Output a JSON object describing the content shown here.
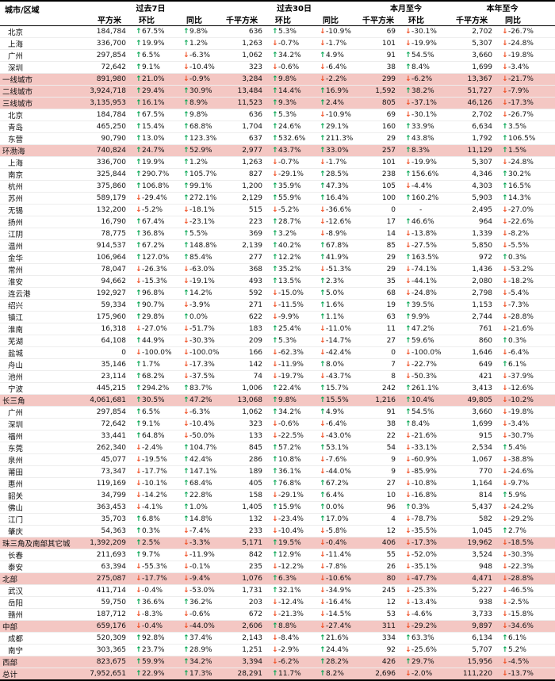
{
  "colors": {
    "up_arrow": "#00a550",
    "down_arrow": "#f04e23",
    "highlight_row_bg": "#f4c7c3",
    "table_frame": "#000000",
    "row_divider": "#ededed",
    "text": "#111111"
  },
  "icons": {
    "up_arrow": {
      "glyph": "↑",
      "color": "#00a550",
      "meaning": "increase"
    },
    "down_arrow": {
      "glyph": "↓",
      "color": "#f04e23",
      "meaning": "decrease"
    }
  },
  "chart_data": {
    "type": "table",
    "corner_header": "城市/区域",
    "column_groups": [
      {
        "label": "过去7日",
        "columns": [
          "平方米",
          "环比",
          "同比"
        ]
      },
      {
        "label": "过去30日",
        "columns": [
          "千平方米",
          "环比",
          "同比"
        ]
      },
      {
        "label": "本月至今",
        "columns": [
          "千平方米",
          "环比"
        ]
      },
      {
        "label": "本年至今",
        "columns": [
          "千平方米",
          "同比"
        ]
      }
    ],
    "column_kinds": [
      "num",
      "pct",
      "pct",
      "num",
      "pct",
      "pct",
      "num",
      "pct",
      "num",
      "pct"
    ],
    "rows": [
      [
        "北京",
        0,
        "184,784",
        "67.5%",
        "9.8%",
        "636",
        "5.3%",
        "-10.9%",
        "69",
        "-30.1%",
        "2,702",
        "-26.7%"
      ],
      [
        "上海",
        0,
        "336,700",
        "19.9%",
        "1.2%",
        "1,263",
        "-0.7%",
        "-1.7%",
        "101",
        "-19.9%",
        "5,307",
        "-24.8%"
      ],
      [
        "广州",
        0,
        "297,854",
        "6.5%",
        "-6.3%",
        "1,062",
        "34.2%",
        "4.9%",
        "91",
        "54.5%",
        "3,660",
        "-19.8%"
      ],
      [
        "深圳",
        0,
        "72,642",
        "9.1%",
        "-10.4%",
        "323",
        "-0.6%",
        "-6.4%",
        "38",
        "8.4%",
        "1,699",
        "-3.4%"
      ],
      [
        "一线城市",
        1,
        "891,980",
        "21.0%",
        "-0.9%",
        "3,284",
        "9.8%",
        "-2.2%",
        "299",
        "-6.2%",
        "13,367",
        "-21.7%"
      ],
      [
        "二线城市",
        1,
        "3,924,718",
        "29.4%",
        "30.9%",
        "13,484",
        "14.4%",
        "16.9%",
        "1,592",
        "38.2%",
        "51,727",
        "-7.9%"
      ],
      [
        "三线城市",
        1,
        "3,135,953",
        "16.1%",
        "8.9%",
        "11,523",
        "9.3%",
        "2.4%",
        "805",
        "-37.1%",
        "46,126",
        "-17.3%"
      ],
      [
        "北京",
        0,
        "184,784",
        "67.5%",
        "9.8%",
        "636",
        "5.3%",
        "-10.9%",
        "69",
        "-30.1%",
        "2,702",
        "-26.7%"
      ],
      [
        "青岛",
        0,
        "465,250",
        "15.4%",
        "68.8%",
        "1,704",
        "24.6%",
        "29.1%",
        "160",
        "33.9%",
        "6,634",
        "3.5%"
      ],
      [
        "东营",
        0,
        "90,790",
        "13.0%",
        "123.3%",
        "637",
        "532.6%",
        "211.3%",
        "29",
        "43.8%",
        "1,792",
        "106.5%"
      ],
      [
        "环渤海",
        1,
        "740,824",
        "24.7%",
        "52.9%",
        "2,977",
        "43.7%",
        "33.0%",
        "257",
        "8.3%",
        "11,129",
        "1.5%"
      ],
      [
        "上海",
        0,
        "336,700",
        "19.9%",
        "1.2%",
        "1,263",
        "-0.7%",
        "-1.7%",
        "101",
        "-19.9%",
        "5,307",
        "-24.8%"
      ],
      [
        "南京",
        0,
        "325,844",
        "290.7%",
        "105.7%",
        "827",
        "-29.1%",
        "28.5%",
        "238",
        "156.6%",
        "4,346",
        "30.2%"
      ],
      [
        "杭州",
        0,
        "375,860",
        "106.8%",
        "99.1%",
        "1,200",
        "35.9%",
        "47.3%",
        "105",
        "-4.4%",
        "4,303",
        "16.5%"
      ],
      [
        "苏州",
        0,
        "589,179",
        "-29.4%",
        "272.1%",
        "2,129",
        "55.9%",
        "16.4%",
        "100",
        "160.2%",
        "5,903",
        "14.3%"
      ],
      [
        "无锡",
        0,
        "132,200",
        "-5.2%",
        "-18.1%",
        "515",
        "-5.2%",
        "-36.6%",
        "0",
        "-",
        "2,495",
        "-27.0%"
      ],
      [
        "扬州",
        0,
        "16,790",
        "67.4%",
        "-23.1%",
        "223",
        "28.7%",
        "-12.6%",
        "17",
        "46.6%",
        "964",
        "-22.6%"
      ],
      [
        "江阴",
        0,
        "78,775",
        "36.8%",
        "5.5%",
        "369",
        "3.2%",
        "-8.9%",
        "14",
        "-13.8%",
        "1,339",
        "-8.2%"
      ],
      [
        "温州",
        0,
        "914,537",
        "67.2%",
        "148.8%",
        "2,139",
        "40.2%",
        "67.8%",
        "85",
        "-27.5%",
        "5,850",
        "-5.5%"
      ],
      [
        "金华",
        0,
        "106,964",
        "127.0%",
        "85.4%",
        "277",
        "12.2%",
        "41.9%",
        "29",
        "163.5%",
        "972",
        "0.3%"
      ],
      [
        "常州",
        0,
        "78,047",
        "-26.3%",
        "-63.0%",
        "368",
        "35.2%",
        "-51.3%",
        "29",
        "-74.1%",
        "1,436",
        "-53.2%"
      ],
      [
        "淮安",
        0,
        "94,662",
        "-15.3%",
        "-19.1%",
        "493",
        "13.5%",
        "2.3%",
        "35",
        "-44.1%",
        "2,080",
        "-18.2%"
      ],
      [
        "连云港",
        0,
        "192,927",
        "96.8%",
        "14.2%",
        "592",
        "-15.0%",
        "5.0%",
        "68",
        "-24.8%",
        "2,798",
        "-5.4%"
      ],
      [
        "绍兴",
        0,
        "59,334",
        "90.7%",
        "-3.9%",
        "271",
        "-11.5%",
        "1.6%",
        "19",
        "39.5%",
        "1,153",
        "-7.3%"
      ],
      [
        "镇江",
        0,
        "175,960",
        "29.8%",
        "0.0%",
        "622",
        "-9.9%",
        "1.1%",
        "63",
        "9.9%",
        "2,744",
        "-28.8%"
      ],
      [
        "淮南",
        0,
        "16,318",
        "-27.0%",
        "-51.7%",
        "183",
        "25.4%",
        "-11.0%",
        "11",
        "47.2%",
        "761",
        "-21.6%"
      ],
      [
        "芜湖",
        0,
        "64,108",
        "44.9%",
        "-30.3%",
        "209",
        "5.3%",
        "-14.7%",
        "27",
        "59.6%",
        "860",
        "0.3%"
      ],
      [
        "盐城",
        0,
        "0",
        "-100.0%",
        "-100.0%",
        "166",
        "-62.3%",
        "-42.4%",
        "0",
        "-100.0%",
        "1,646",
        "-6.4%"
      ],
      [
        "舟山",
        0,
        "35,146",
        "1.7%",
        "-17.3%",
        "142",
        "-11.9%",
        "8.0%",
        "7",
        "-22.7%",
        "649",
        "6.1%"
      ],
      [
        "池州",
        0,
        "23,114",
        "68.2%",
        "-37.5%",
        "74",
        "-19.7%",
        "-43.7%",
        "8",
        "-50.3%",
        "421",
        "-37.9%"
      ],
      [
        "宁波",
        0,
        "445,215",
        "294.2%",
        "83.7%",
        "1,006",
        "22.4%",
        "15.7%",
        "242",
        "261.1%",
        "3,413",
        "-12.6%"
      ],
      [
        "长三角",
        1,
        "4,061,681",
        "30.5%",
        "47.2%",
        "13,068",
        "9.8%",
        "15.5%",
        "1,216",
        "10.4%",
        "49,805",
        "-10.2%"
      ],
      [
        "广州",
        0,
        "297,854",
        "6.5%",
        "-6.3%",
        "1,062",
        "34.2%",
        "4.9%",
        "91",
        "54.5%",
        "3,660",
        "-19.8%"
      ],
      [
        "深圳",
        0,
        "72,642",
        "9.1%",
        "-10.4%",
        "323",
        "-0.6%",
        "-6.4%",
        "38",
        "8.4%",
        "1,699",
        "-3.4%"
      ],
      [
        "福州",
        0,
        "33,441",
        "64.8%",
        "-50.0%",
        "133",
        "-22.5%",
        "-43.0%",
        "22",
        "-21.6%",
        "915",
        "-30.7%"
      ],
      [
        "东莞",
        0,
        "262,340",
        "-2.4%",
        "104.7%",
        "845",
        "57.2%",
        "53.1%",
        "54",
        "-33.1%",
        "2,534",
        "5.4%"
      ],
      [
        "泉州",
        0,
        "45,077",
        "-19.5%",
        "42.4%",
        "286",
        "10.8%",
        "-7.6%",
        "9",
        "-60.9%",
        "1,067",
        "-38.8%"
      ],
      [
        "莆田",
        0,
        "73,347",
        "-17.7%",
        "147.1%",
        "189",
        "36.1%",
        "-44.0%",
        "9",
        "-85.9%",
        "770",
        "-24.6%"
      ],
      [
        "惠州",
        0,
        "119,169",
        "-10.1%",
        "68.4%",
        "405",
        "76.8%",
        "67.2%",
        "27",
        "-10.8%",
        "1,164",
        "-9.7%"
      ],
      [
        "韶关",
        0,
        "34,799",
        "-14.2%",
        "22.8%",
        "158",
        "-29.1%",
        "6.4%",
        "10",
        "-16.8%",
        "814",
        "5.9%"
      ],
      [
        "佛山",
        0,
        "363,453",
        "-4.1%",
        "1.0%",
        "1,405",
        "15.9%",
        "0.0%",
        "96",
        "0.3%",
        "5,437",
        "-24.2%"
      ],
      [
        "江门",
        0,
        "35,703",
        "6.8%",
        "14.8%",
        "132",
        "-23.4%",
        "17.0%",
        "4",
        "-78.7%",
        "582",
        "-29.2%"
      ],
      [
        "肇庆",
        0,
        "54,363",
        "0.3%",
        "-7.4%",
        "233",
        "-10.4%",
        "-5.8%",
        "12",
        "-35.5%",
        "1,045",
        "2.7%"
      ],
      [
        "珠三角及南部其它城",
        1,
        "1,392,209",
        "2.5%",
        "-3.3%",
        "5,171",
        "19.5%",
        "-0.4%",
        "406",
        "-17.3%",
        "19,962",
        "-18.5%"
      ],
      [
        "长春",
        0,
        "211,693",
        "9.7%",
        "-11.9%",
        "842",
        "12.9%",
        "-11.4%",
        "55",
        "-52.0%",
        "3,524",
        "-30.3%"
      ],
      [
        "泰安",
        0,
        "63,394",
        "-55.3%",
        "-0.1%",
        "235",
        "-12.2%",
        "-7.8%",
        "26",
        "-35.1%",
        "948",
        "-22.3%"
      ],
      [
        "北部",
        1,
        "275,087",
        "-17.7%",
        "-9.4%",
        "1,076",
        "6.3%",
        "-10.6%",
        "80",
        "-47.7%",
        "4,471",
        "-28.8%"
      ],
      [
        "武汉",
        0,
        "411,714",
        "-0.4%",
        "-53.0%",
        "1,731",
        "32.1%",
        "-34.9%",
        "245",
        "-25.3%",
        "5,227",
        "-46.5%"
      ],
      [
        "岳阳",
        0,
        "59,750",
        "36.6%",
        "36.2%",
        "203",
        "-12.4%",
        "-16.4%",
        "12",
        "-13.4%",
        "938",
        "-2.5%"
      ],
      [
        "赣州",
        0,
        "187,712",
        "-8.3%",
        "-0.6%",
        "672",
        "-21.3%",
        "-14.5%",
        "53",
        "-4.6%",
        "3,733",
        "-15.8%"
      ],
      [
        "中部",
        1,
        "659,176",
        "-0.4%",
        "-44.0%",
        "2,606",
        "8.8%",
        "-27.4%",
        "311",
        "-29.2%",
        "9,897",
        "-34.6%"
      ],
      [
        "成都",
        0,
        "520,309",
        "92.8%",
        "37.4%",
        "2,143",
        "-8.4%",
        "21.6%",
        "334",
        "63.3%",
        "6,134",
        "6.1%"
      ],
      [
        "南宁",
        0,
        "303,365",
        "23.7%",
        "28.9%",
        "1,251",
        "-2.9%",
        "24.4%",
        "92",
        "-25.6%",
        "5,707",
        "5.2%"
      ],
      [
        "西部",
        1,
        "823,675",
        "59.9%",
        "34.2%",
        "3,394",
        "-6.2%",
        "28.2%",
        "426",
        "29.7%",
        "15,956",
        "-4.5%"
      ],
      [
        "总计",
        1,
        "7,952,651",
        "22.9%",
        "17.3%",
        "28,291",
        "11.7%",
        "8.2%",
        "2,696",
        "-2.0%",
        "111,220",
        "-13.7%"
      ]
    ]
  }
}
